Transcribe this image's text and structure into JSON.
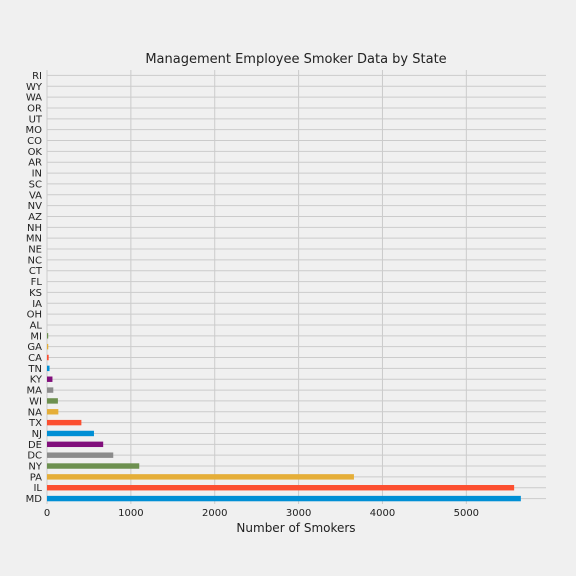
{
  "chart_data": {
    "type": "bar",
    "orientation": "horizontal",
    "title": "Management Employee Smoker Data by State",
    "xlabel": "Number of Smokers",
    "ylabel": "",
    "xlim": [
      0,
      5950
    ],
    "xticks": [
      0,
      1000,
      2000,
      3000,
      4000,
      5000
    ],
    "grid": true,
    "legend": "none",
    "categories": [
      "MD",
      "IL",
      "PA",
      "NY",
      "DC",
      "DE",
      "NJ",
      "TX",
      "NA",
      "WI",
      "MA",
      "KY",
      "TN",
      "CA",
      "GA",
      "MI",
      "AL",
      "OH",
      "IA",
      "KS",
      "FL",
      "CT",
      "NC",
      "NE",
      "MN",
      "NH",
      "AZ",
      "NV",
      "VA",
      "SC",
      "IN",
      "AR",
      "OK",
      "CO",
      "MO",
      "UT",
      "OR",
      "WA",
      "WY",
      "RI"
    ],
    "values": [
      5650,
      5570,
      3660,
      1100,
      790,
      670,
      560,
      410,
      135,
      130,
      75,
      65,
      30,
      20,
      15,
      10,
      0,
      0,
      0,
      0,
      0,
      0,
      0,
      0,
      0,
      0,
      0,
      0,
      0,
      0,
      0,
      0,
      0,
      0,
      0,
      0,
      0,
      0,
      0,
      0
    ],
    "colors": [
      "#008fd5",
      "#fc4f30",
      "#e5ae38",
      "#6d904f",
      "#8b8b8b",
      "#810f7c"
    ]
  }
}
